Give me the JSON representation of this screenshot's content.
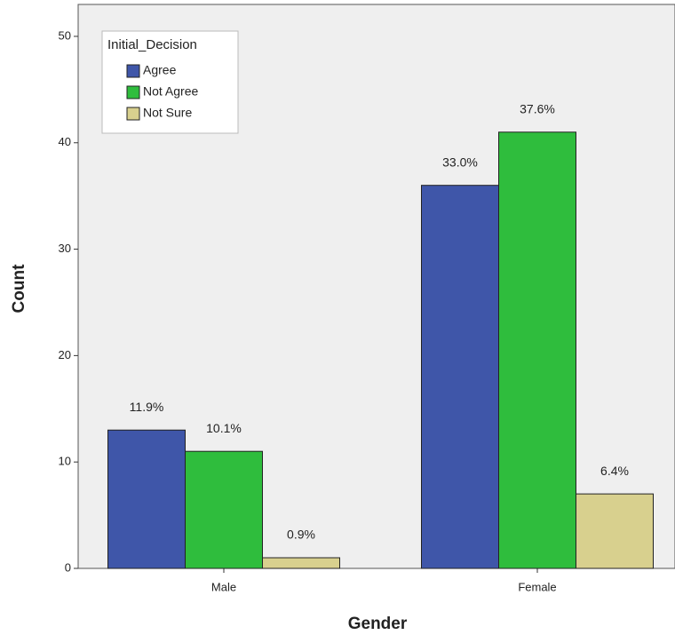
{
  "chart_data": {
    "type": "bar",
    "x_label": "Gender",
    "y_label": "Count",
    "legend_title": "Initial_Decision",
    "categories": [
      "Male",
      "Female"
    ],
    "series": [
      {
        "name": "Agree",
        "color": "#3f56a9",
        "values": [
          13,
          36
        ],
        "percent_labels": [
          "11.9%",
          "33.0%"
        ]
      },
      {
        "name": "Not Agree",
        "color": "#2fbd3d",
        "values": [
          11,
          41
        ],
        "percent_labels": [
          "10.1%",
          "37.6%"
        ]
      },
      {
        "name": "Not Sure",
        "color": "#d8d08e",
        "values": [
          1,
          7
        ],
        "percent_labels": [
          "0.9%",
          "6.4%"
        ]
      }
    ],
    "ylim": [
      0,
      53
    ],
    "yticks": [
      0,
      10,
      20,
      30,
      40,
      50
    ],
    "legend_position": "upper left"
  }
}
